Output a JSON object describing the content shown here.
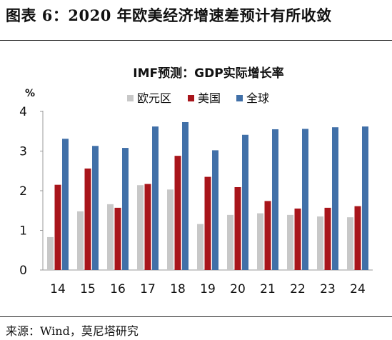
{
  "figure": {
    "title": "图表 6：2020 年欧美经济增速差预计有所收敛",
    "source": "来源：Wind，莫尼塔研究"
  },
  "chart_data": {
    "type": "bar",
    "title": "IMF预测：GDP实际增长率",
    "ylabel": "%",
    "ylim": [
      0,
      4
    ],
    "yticks": [
      "0",
      "1",
      "2",
      "3",
      "4"
    ],
    "grid": false,
    "legend": "top-center",
    "categories": [
      "14",
      "15",
      "16",
      "17",
      "18",
      "19",
      "20",
      "21",
      "22",
      "23",
      "24"
    ],
    "series": [
      {
        "name": "欧元区",
        "color": "#c8c8c8",
        "values": [
          0.83,
          1.48,
          1.66,
          2.14,
          2.03,
          1.16,
          1.39,
          1.43,
          1.39,
          1.35,
          1.33
        ]
      },
      {
        "name": "美国",
        "color": "#a8151b",
        "values": [
          2.15,
          2.56,
          1.57,
          2.17,
          2.88,
          2.35,
          2.09,
          1.74,
          1.55,
          1.57,
          1.61
        ]
      },
      {
        "name": "全球",
        "color": "#4170a8",
        "values": [
          3.31,
          3.13,
          3.08,
          3.62,
          3.73,
          3.02,
          3.41,
          3.55,
          3.56,
          3.6,
          3.62
        ]
      }
    ]
  }
}
